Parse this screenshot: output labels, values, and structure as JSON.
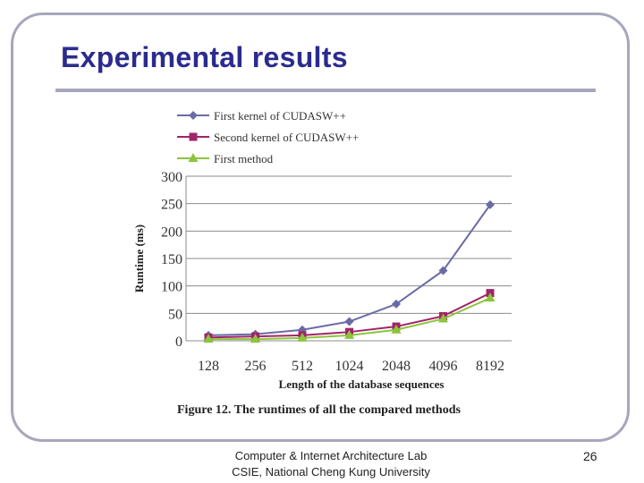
{
  "slide": {
    "title": "Experimental results",
    "footer_line1": "Computer & Internet Architecture Lab",
    "footer_line2": "CSIE, National Cheng Kung University",
    "page_number": "26"
  },
  "colors": {
    "title": "#2b2b8f",
    "frame": "#a6a6bd",
    "series1": "#6a6aa6",
    "series2": "#a0246a",
    "series3": "#8cc43c"
  },
  "chart_data": {
    "type": "line",
    "categories": [
      "128",
      "256",
      "512",
      "1024",
      "2048",
      "4096",
      "8192"
    ],
    "series": [
      {
        "name": "First kernel of CUDASW++",
        "marker": "diamond",
        "values": [
          10,
          12,
          20,
          35,
          67,
          128,
          248
        ]
      },
      {
        "name": "Second kernel of CUDASW++",
        "marker": "square",
        "values": [
          6,
          8,
          10,
          16,
          26,
          45,
          87
        ]
      },
      {
        "name": "First method",
        "marker": "triangle",
        "values": [
          3,
          3,
          5,
          10,
          20,
          40,
          78
        ]
      }
    ],
    "yticks": [
      "0",
      "50",
      "100",
      "150",
      "200",
      "250",
      "300"
    ],
    "ylim": [
      0,
      300
    ],
    "grid": true,
    "legend": "top-left",
    "xlabel": "Length of the database sequences",
    "ylabel": "Runtime (ms)",
    "caption": "Figure 12. The runtimes of all the compared methods"
  }
}
